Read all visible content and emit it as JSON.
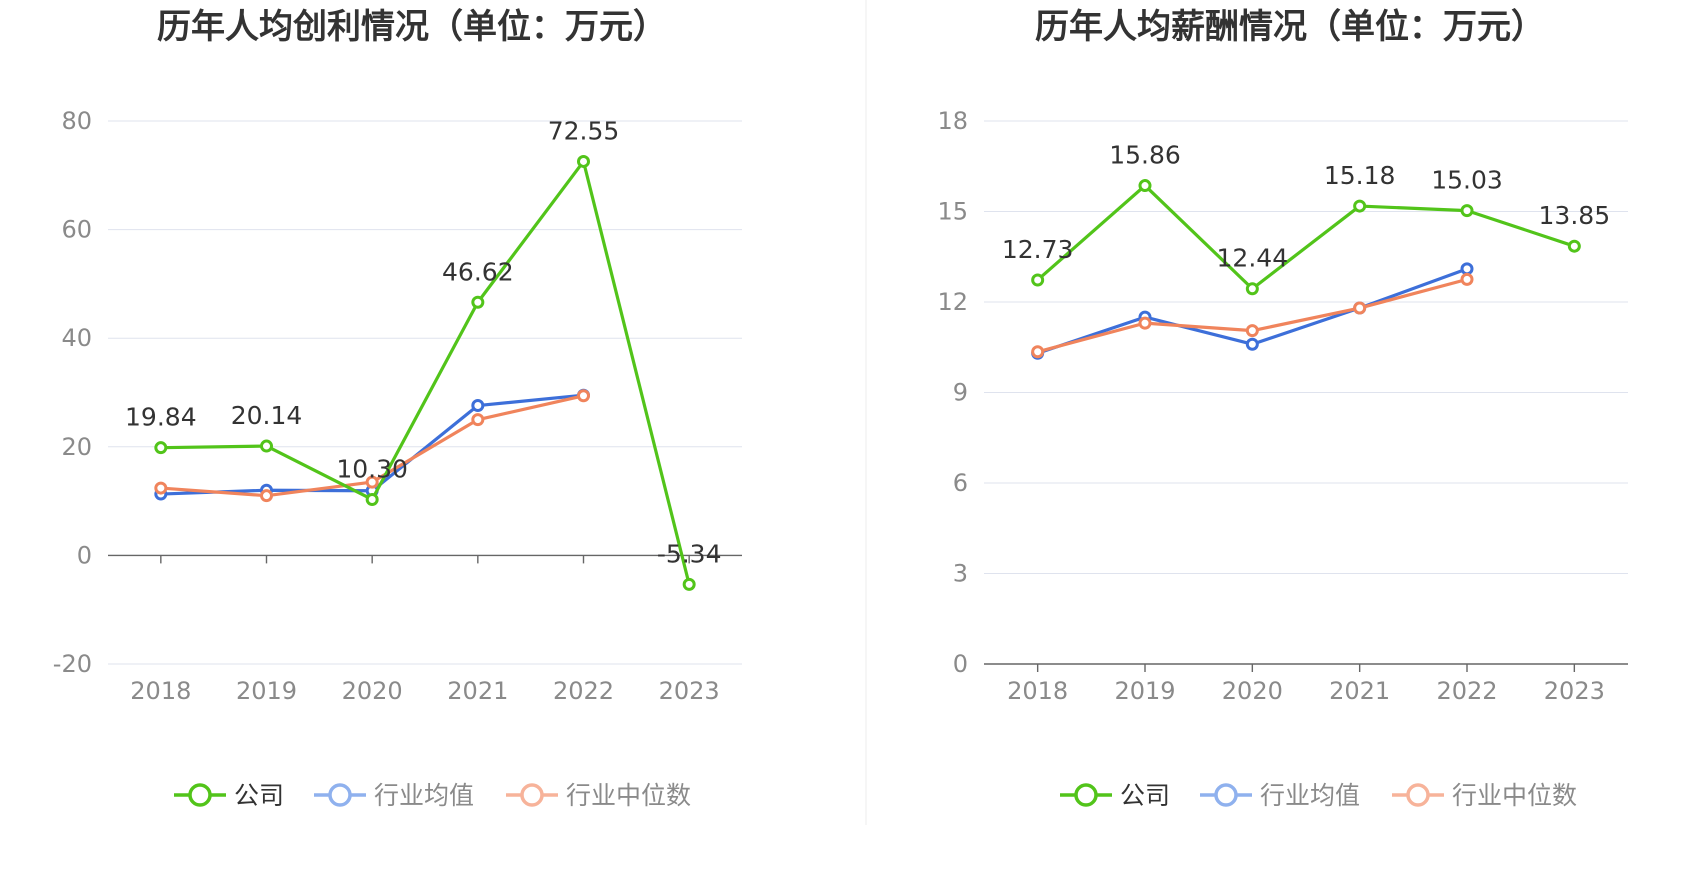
{
  "chart_data": [
    {
      "type": "line",
      "title": "历年人均创利情况（单位：万元）",
      "categories": [
        "2018",
        "2019",
        "2020",
        "2021",
        "2022",
        "2023"
      ],
      "ylim": [
        -20,
        80
      ],
      "yticks": [
        -20,
        0,
        20,
        40,
        60,
        80
      ],
      "ytick_labels": [
        "-20",
        "0",
        "20",
        "40",
        "60",
        "80"
      ],
      "grid": true,
      "legend_position": "bottom",
      "series": [
        {
          "name": "公司",
          "color": "#52c41a",
          "values": [
            19.84,
            20.14,
            10.3,
            46.62,
            72.55,
            -5.34
          ],
          "labels": [
            "19.84",
            "20.14",
            "10.30",
            "46.62",
            "72.55",
            "-5.34"
          ]
        },
        {
          "name": "行业均值",
          "color": "#3d6fd9",
          "values": [
            11.3,
            12.0,
            11.9,
            27.6,
            29.5,
            null
          ]
        },
        {
          "name": "行业中位数",
          "color": "#f0845c",
          "values": [
            12.4,
            11.0,
            13.5,
            25.0,
            29.4,
            null
          ]
        }
      ]
    },
    {
      "type": "line",
      "title": "历年人均薪酬情况（单位：万元）",
      "categories": [
        "2018",
        "2019",
        "2020",
        "2021",
        "2022",
        "2023"
      ],
      "ylim": [
        0,
        18
      ],
      "yticks": [
        0,
        3,
        6,
        9,
        12,
        15,
        18
      ],
      "ytick_labels": [
        "0",
        "3",
        "6",
        "9",
        "12",
        "15",
        "18"
      ],
      "grid": true,
      "legend_position": "bottom",
      "series": [
        {
          "name": "公司",
          "color": "#52c41a",
          "values": [
            12.73,
            15.86,
            12.44,
            15.18,
            15.03,
            13.85
          ],
          "labels": [
            "12.73",
            "15.86",
            "12.44",
            "15.18",
            "15.03",
            "13.85"
          ]
        },
        {
          "name": "行业均值",
          "color": "#3d6fd9",
          "values": [
            10.3,
            11.5,
            10.6,
            11.8,
            13.1,
            null
          ]
        },
        {
          "name": "行业中位数",
          "color": "#f0845c",
          "values": [
            10.35,
            11.3,
            11.05,
            11.8,
            12.75,
            null
          ]
        }
      ]
    }
  ]
}
